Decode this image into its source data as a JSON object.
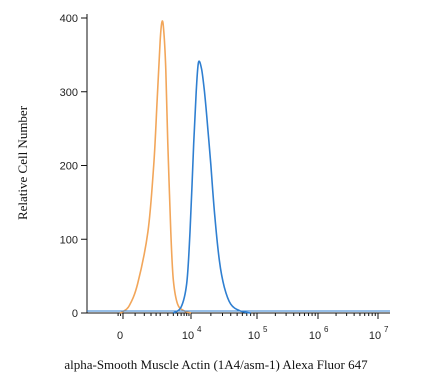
{
  "chart_data": {
    "type": "line",
    "title": "",
    "xlabel": "alpha-Smooth Muscle Actin (1A4/asm-1) Alexa Fluor 647",
    "ylabel": "Relative Cell Number",
    "ylim": [
      0,
      400
    ],
    "yticks": [
      0,
      100,
      200,
      300,
      400
    ],
    "xscale": "biexponential",
    "xticks": [
      {
        "base": "0",
        "exp": "",
        "value": 0
      },
      {
        "base": "10",
        "exp": "4",
        "value": 10000
      },
      {
        "base": "10",
        "exp": "5",
        "value": 100000
      },
      {
        "base": "10",
        "exp": "6",
        "value": 1000000
      },
      {
        "base": "10",
        "exp": "7",
        "value": 10000000
      }
    ],
    "grid": false,
    "legend": "none",
    "series": [
      {
        "color": "#f2a65a",
        "points": [
          [
            -500,
            0
          ],
          [
            0,
            2
          ],
          [
            200,
            10
          ],
          [
            500,
            40
          ],
          [
            1000,
            110
          ],
          [
            1400,
            200
          ],
          [
            1700,
            290
          ],
          [
            2000,
            370
          ],
          [
            2200,
            395
          ],
          [
            2400,
            385
          ],
          [
            2700,
            330
          ],
          [
            3000,
            230
          ],
          [
            3500,
            110
          ],
          [
            4000,
            45
          ],
          [
            5000,
            12
          ],
          [
            7000,
            3
          ],
          [
            10000,
            0
          ]
        ]
      },
      {
        "color": "#2f7fd1",
        "points": [
          [
            4000,
            0
          ],
          [
            6000,
            8
          ],
          [
            8000,
            40
          ],
          [
            9500,
            110
          ],
          [
            11000,
            230
          ],
          [
            12000,
            300
          ],
          [
            13000,
            340
          ],
          [
            14500,
            330
          ],
          [
            16000,
            300
          ],
          [
            18000,
            250
          ],
          [
            20000,
            200
          ],
          [
            23000,
            130
          ],
          [
            27000,
            70
          ],
          [
            32000,
            35
          ],
          [
            40000,
            12
          ],
          [
            55000,
            3
          ],
          [
            80000,
            0
          ]
        ]
      }
    ]
  }
}
